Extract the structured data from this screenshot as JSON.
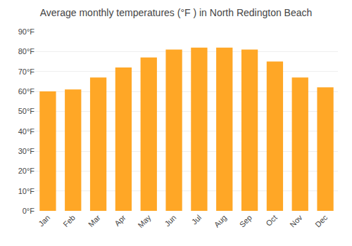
{
  "chart_data": {
    "type": "bar",
    "title": "Average monthly temperatures (°F ) in North Redington Beach",
    "categories": [
      "Jan",
      "Feb",
      "Mar",
      "Apr",
      "May",
      "Jun",
      "Jul",
      "Aug",
      "Sep",
      "Oct",
      "Nov",
      "Dec"
    ],
    "values": [
      60,
      61,
      67,
      72,
      77,
      81,
      82,
      82,
      81,
      75,
      67,
      62
    ],
    "color": "#FFA726",
    "ylim": [
      0,
      90
    ],
    "yticks": [
      {
        "value": 0,
        "label": "0°F"
      },
      {
        "value": 10,
        "label": "10°F"
      },
      {
        "value": 20,
        "label": "20°F"
      },
      {
        "value": 30,
        "label": "30°F"
      },
      {
        "value": 40,
        "label": "40°F"
      },
      {
        "value": 50,
        "label": "50°F"
      },
      {
        "value": 60,
        "label": "60°F"
      },
      {
        "value": 70,
        "label": "70°F"
      },
      {
        "value": 80,
        "label": "80°F"
      },
      {
        "value": 90,
        "label": "90°F"
      }
    ],
    "grid": true
  }
}
